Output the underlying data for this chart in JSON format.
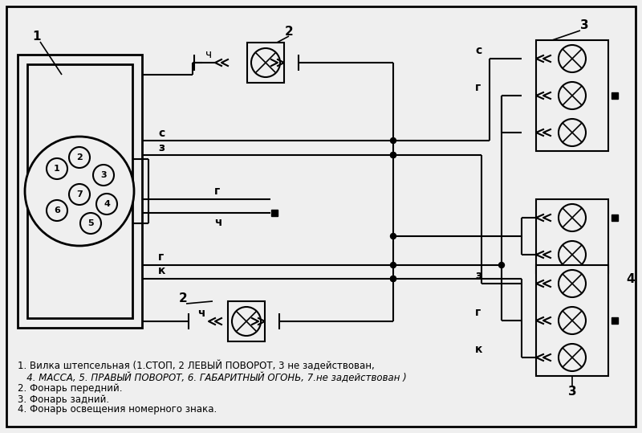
{
  "bg": "#efefef",
  "lc": "#000000",
  "lw": 1.5,
  "legend": [
    "1. Вилка штепсельная (1.СТОП, 2 ЛЕВЫЙ ПОВОРОТ, 3 не задействован,",
    "   4. МАССА, 5. ПРАВЫЙ ПОВОРОТ, 6. ГАБАРИТНЫЙ ОГОНЬ, 7.не задействован )",
    "2. Фонарь передний.",
    "3. Фонарь задний.",
    "4. Фонарь освещения номерного знака."
  ]
}
